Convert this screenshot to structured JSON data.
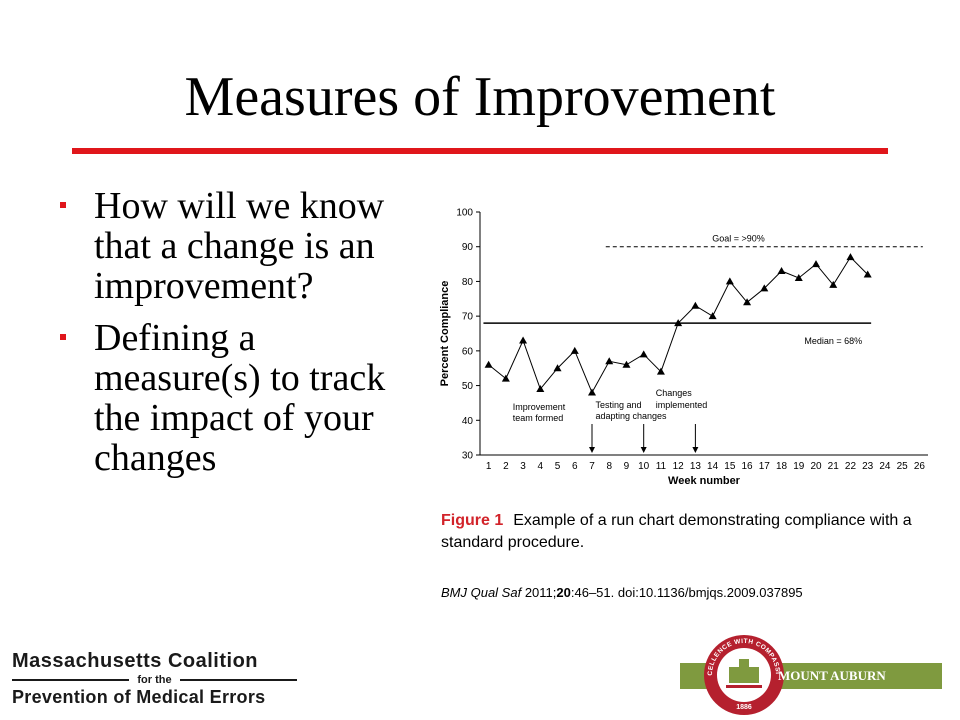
{
  "title": "Measures of Improvement",
  "bullets": [
    "How will we know that a change is an improvement?",
    "Defining a measure(s) to track the impact of your changes"
  ],
  "chart_data": {
    "type": "line",
    "xlabel": "Week number",
    "ylabel": "Percent Compliance",
    "xlim": [
      1,
      26
    ],
    "ylim": [
      30,
      100
    ],
    "x_ticks": [
      1,
      2,
      3,
      4,
      5,
      6,
      7,
      8,
      9,
      10,
      11,
      12,
      13,
      14,
      15,
      16,
      17,
      18,
      19,
      20,
      21,
      22,
      23,
      24,
      25,
      26
    ],
    "y_ticks": [
      30,
      40,
      50,
      60,
      70,
      80,
      90,
      100
    ],
    "series": [
      {
        "marker": "triangle",
        "x": [
          1,
          2,
          3,
          4,
          5,
          6,
          7,
          8,
          9,
          10,
          11,
          12,
          13,
          14,
          15,
          16,
          17,
          18,
          19,
          20,
          21,
          22,
          23
        ],
        "y": [
          56,
          52,
          63,
          49,
          55,
          60,
          48,
          57,
          56,
          59,
          54,
          68,
          73,
          70,
          80,
          74,
          78,
          83,
          81,
          85,
          79,
          87,
          82
        ]
      }
    ],
    "reference_lines": [
      {
        "label": "Goal  = >90%",
        "y": 90,
        "x_start": 8,
        "x_end": 26,
        "style": "dashed"
      },
      {
        "label": "Median = 68%",
        "y": 68,
        "x_start": 1,
        "x_end": 23,
        "style": "solid"
      }
    ],
    "annotations": [
      {
        "text_lines": [
          "Improvement",
          "team formed"
        ],
        "x": 7
      },
      {
        "text_lines": [
          "Testing and",
          "adapting changes"
        ],
        "x": 10
      },
      {
        "text_lines": [
          "Changes",
          "implemented"
        ],
        "x": 13
      }
    ],
    "grid": false
  },
  "caption": {
    "label": "Figure 1",
    "text": "Example of a run chart demonstrating compliance with a standard procedure."
  },
  "citation": {
    "journal": "BMJ Qual Saf",
    "year": "2011;",
    "volume": "20",
    "rest": ":46–51. doi:10.1136/bmjqs.2009.037895"
  },
  "logo_left": {
    "line1": "Massachusetts Coalition",
    "line2": "for the",
    "line3": "Prevention of Medical Errors"
  },
  "logo_right": {
    "name": "MOUNT AUBURN HOSPITAL",
    "seal_text": "EXCELLENCE WITH COMPASSION",
    "seal_year": "1886"
  },
  "colors": {
    "accent_red": "#e0161b",
    "figure_label_red": "#d2232a",
    "hospital_green": "#7f9a3f",
    "seal_red": "#b5202e"
  }
}
